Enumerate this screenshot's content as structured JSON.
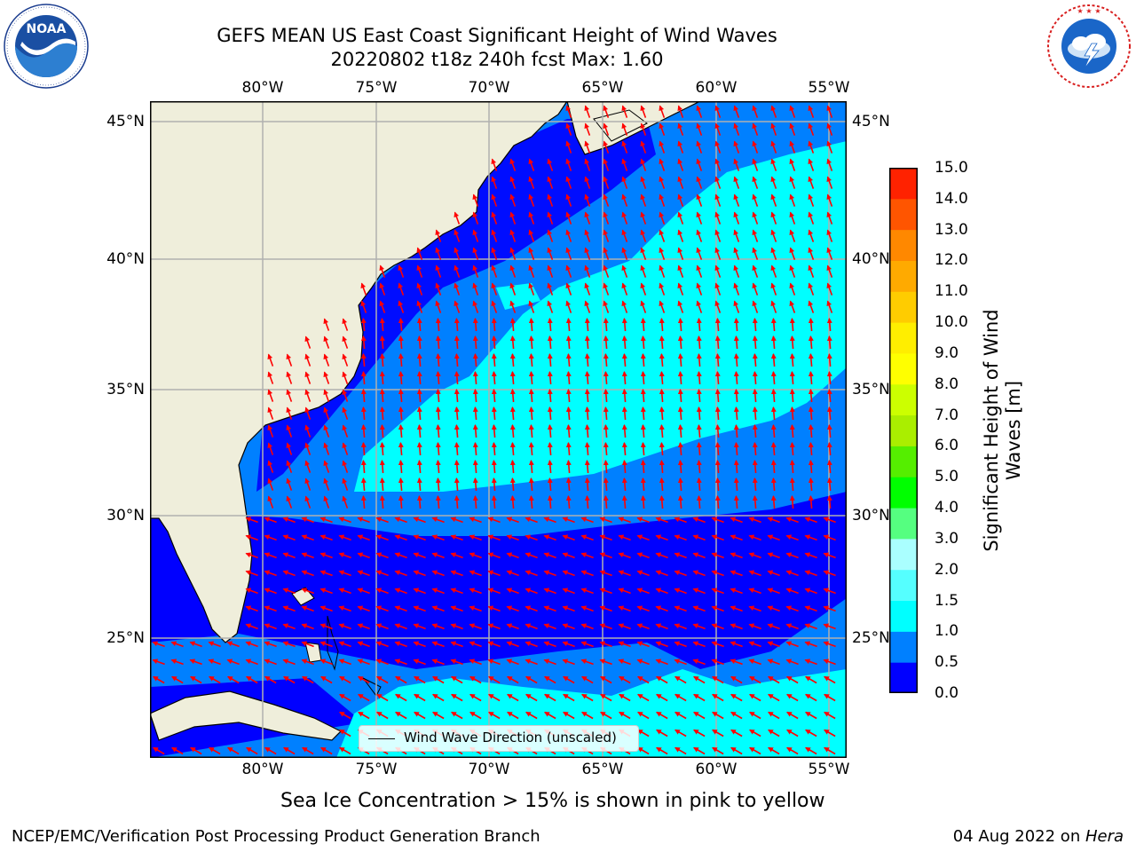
{
  "title": {
    "line1": "GEFS MEAN US East Coast Significant Height of Wind Waves",
    "line2": "20220802 t18z 240h fcst   Max: 1.60"
  },
  "logos": {
    "noaa": {
      "text": "NOAA",
      "ring_text": "NATIONAL OCEANIC AND ATMOSPHERIC ADMINISTRATION · U.S. DEPARTMENT OF COMMERCE"
    },
    "nws": {
      "ring_text": "NATIONAL WEATHER SERVICE"
    }
  },
  "map": {
    "lon_labels": [
      "80°W",
      "75°W",
      "70°W",
      "65°W",
      "60°W",
      "55°W"
    ],
    "lat_labels": [
      "45°N",
      "40°N",
      "35°N",
      "30°N",
      "25°N"
    ],
    "lon_range": [
      -85,
      -54.2
    ],
    "lat_range": [
      20,
      46
    ],
    "land_color": "#efeedb",
    "grid_color": "#b0b0b0",
    "arrow_color": "#ff0000"
  },
  "legend": {
    "label": "Wind Wave Direction (unscaled)"
  },
  "colorbar": {
    "label": "Significant Height of Wind Waves [m]",
    "label_line1": "Significant Height of Wind",
    "label_line2": "Waves [m]",
    "ticks": [
      "0.0",
      "0.5",
      "1.0",
      "1.5",
      "2.0",
      "3.0",
      "4.0",
      "5.0",
      "6.0",
      "7.0",
      "8.0",
      "9.0",
      "10.0",
      "11.0",
      "12.0",
      "13.0",
      "14.0",
      "15.0"
    ],
    "colors": [
      "#0000ff",
      "#0080ff",
      "#00ffff",
      "#55ffff",
      "#aaffff",
      "#55ff80",
      "#00ff00",
      "#55ee00",
      "#aaee00",
      "#ccff00",
      "#ffff00",
      "#ffee00",
      "#ffcc00",
      "#ffaa00",
      "#ff8800",
      "#ff5500",
      "#ff2200"
    ]
  },
  "subcaption": "Sea Ice Concentration > 15% is shown in pink to yellow",
  "footer": {
    "left": "NCEP/EMC/Verification Post Processing Product Generation Branch",
    "date": "04 Aug 2022 on ",
    "host": "Hera"
  }
}
